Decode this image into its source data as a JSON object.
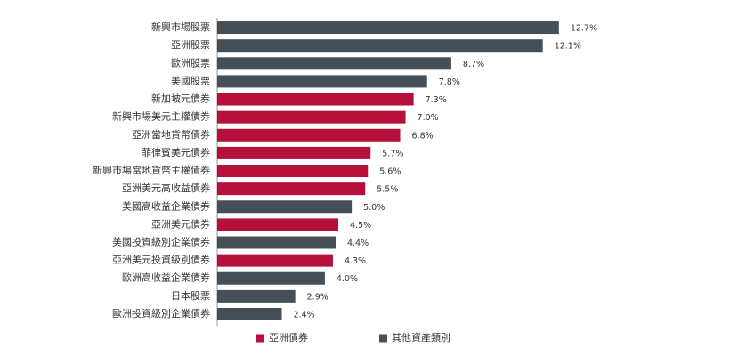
{
  "chart_data": {
    "type": "bar",
    "orientation": "horizontal",
    "categories": [
      "新興市場股票",
      "亞洲股票",
      "歐洲股票",
      "美國股票",
      "新加坡元債券",
      "新興市場美元主權債券",
      "亞洲當地貨幣債券",
      "菲律賓美元債券",
      "新興市場當地貨幣主權債券",
      "亞洲美元高收益債券",
      "美國高收益企業債券",
      "亞洲美元債券",
      "美國投資級別企業債券",
      "亞洲美元投資級別債券",
      "歐洲高收益企業債券",
      "日本股票",
      "歐洲投資級別企業債券"
    ],
    "series": [
      {
        "name": "亞洲債券",
        "color": "#b5103a",
        "values": [
          null,
          null,
          null,
          null,
          7.3,
          7.0,
          6.8,
          5.7,
          5.6,
          5.5,
          null,
          4.5,
          null,
          4.3,
          null,
          null,
          null
        ],
        "value_labels": [
          null,
          null,
          null,
          null,
          "7.3%",
          "7.0%",
          "6.8%",
          "5.7%",
          "5.6%",
          "5.5%",
          null,
          "4.5%",
          null,
          "4.3%",
          null,
          null,
          null
        ]
      },
      {
        "name": "其他資產類別",
        "color": "#454f58",
        "values": [
          12.7,
          12.1,
          8.7,
          7.8,
          null,
          null,
          null,
          null,
          null,
          null,
          5.0,
          null,
          4.4,
          null,
          4.0,
          2.9,
          2.4
        ],
        "value_labels": [
          "12.7%",
          "12.1%",
          "8.7%",
          "7.8%",
          null,
          null,
          null,
          null,
          null,
          null,
          "5.0%",
          null,
          "4.4%",
          null,
          "4.0%",
          "2.9%",
          "2.4%"
        ]
      }
    ],
    "xlim": [
      0,
      13.5
    ],
    "legend": "bottom"
  }
}
